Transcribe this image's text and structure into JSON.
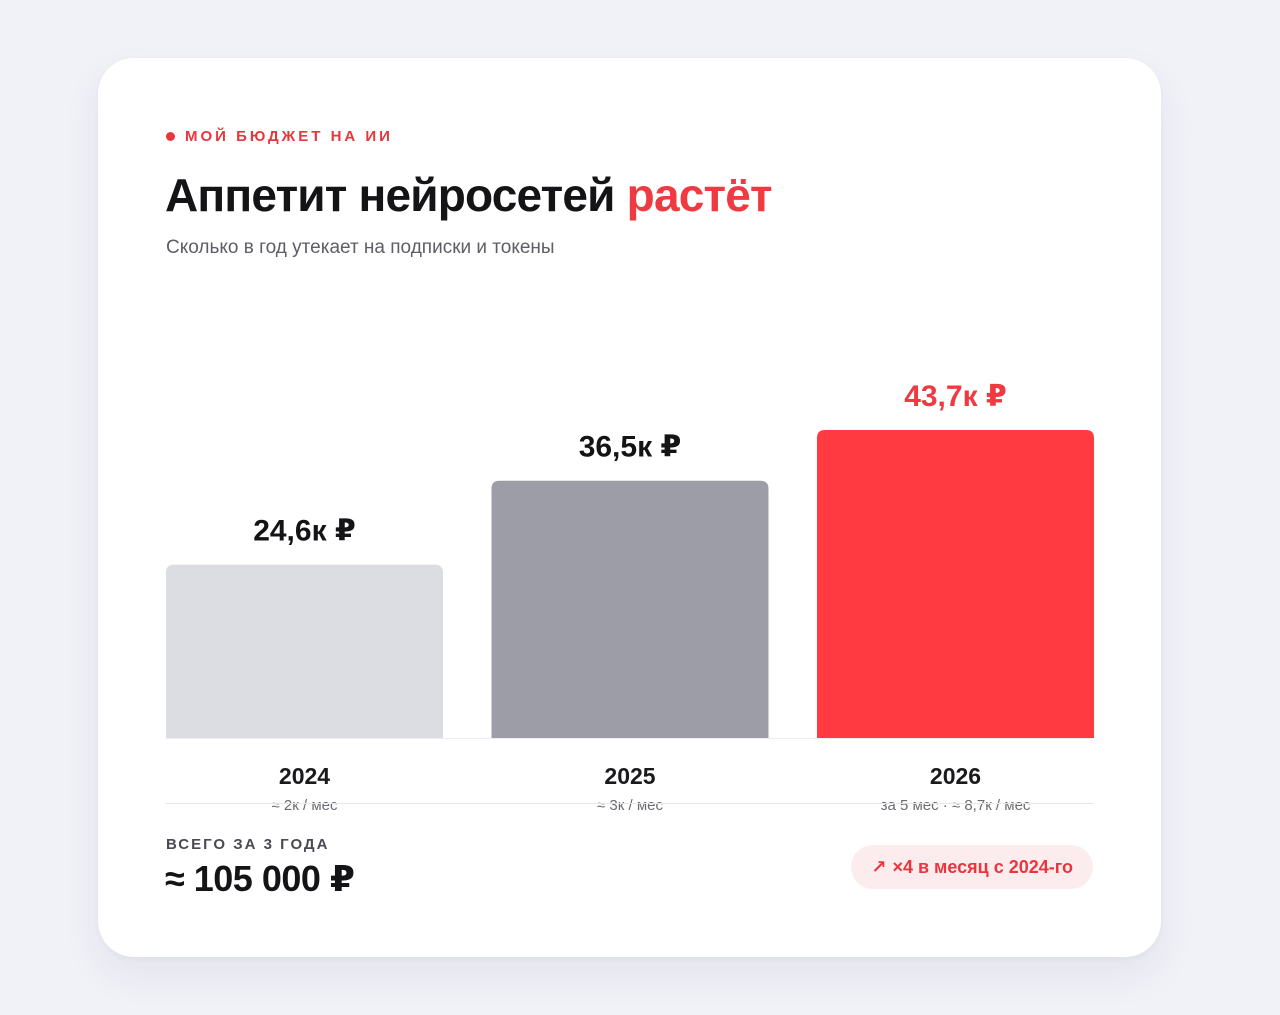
{
  "header": {
    "kicker": "МОЙ БЮДЖЕТ НА ИИ",
    "title_main": "Аппетит нейросетей",
    "title_accent": "растёт",
    "subtitle": "Сколько в год утекает на подписки и токены"
  },
  "colors": {
    "accent": "#ff3a40",
    "bar_2024": "#dcdde3",
    "bar_2025": "#9d9da8",
    "bar_2026": "#ff3a40",
    "value_dark": "#141416",
    "value_accent": "#ee3a40"
  },
  "chart_data": {
    "type": "bar",
    "categories": [
      "2024",
      "2025",
      "2026"
    ],
    "values": [
      24.6,
      36.5,
      43.7
    ],
    "value_labels": [
      "24,6к ₽",
      "36,5к ₽",
      "43,7к ₽"
    ],
    "notes": [
      "≈ 2к / мес",
      "≈ 3к / мес",
      "за 5 мес · ≈ 8,7к / мес"
    ],
    "bar_colors": [
      "#dcdde3",
      "#9d9da8",
      "#ff3a40"
    ],
    "highlight_index": 2,
    "title": "Аппетит нейросетей растёт",
    "xlabel": "",
    "ylabel": "",
    "ylim": [
      0,
      43.7
    ],
    "grid": false
  },
  "footer": {
    "total_label": "ВСЕГО ЗА 3 ГОДА",
    "total_value": "≈ 105 000 ₽",
    "growth_arrow_icon": "arrow-up-right-icon",
    "growth_text": "×4 в месяц с 2024-го"
  }
}
